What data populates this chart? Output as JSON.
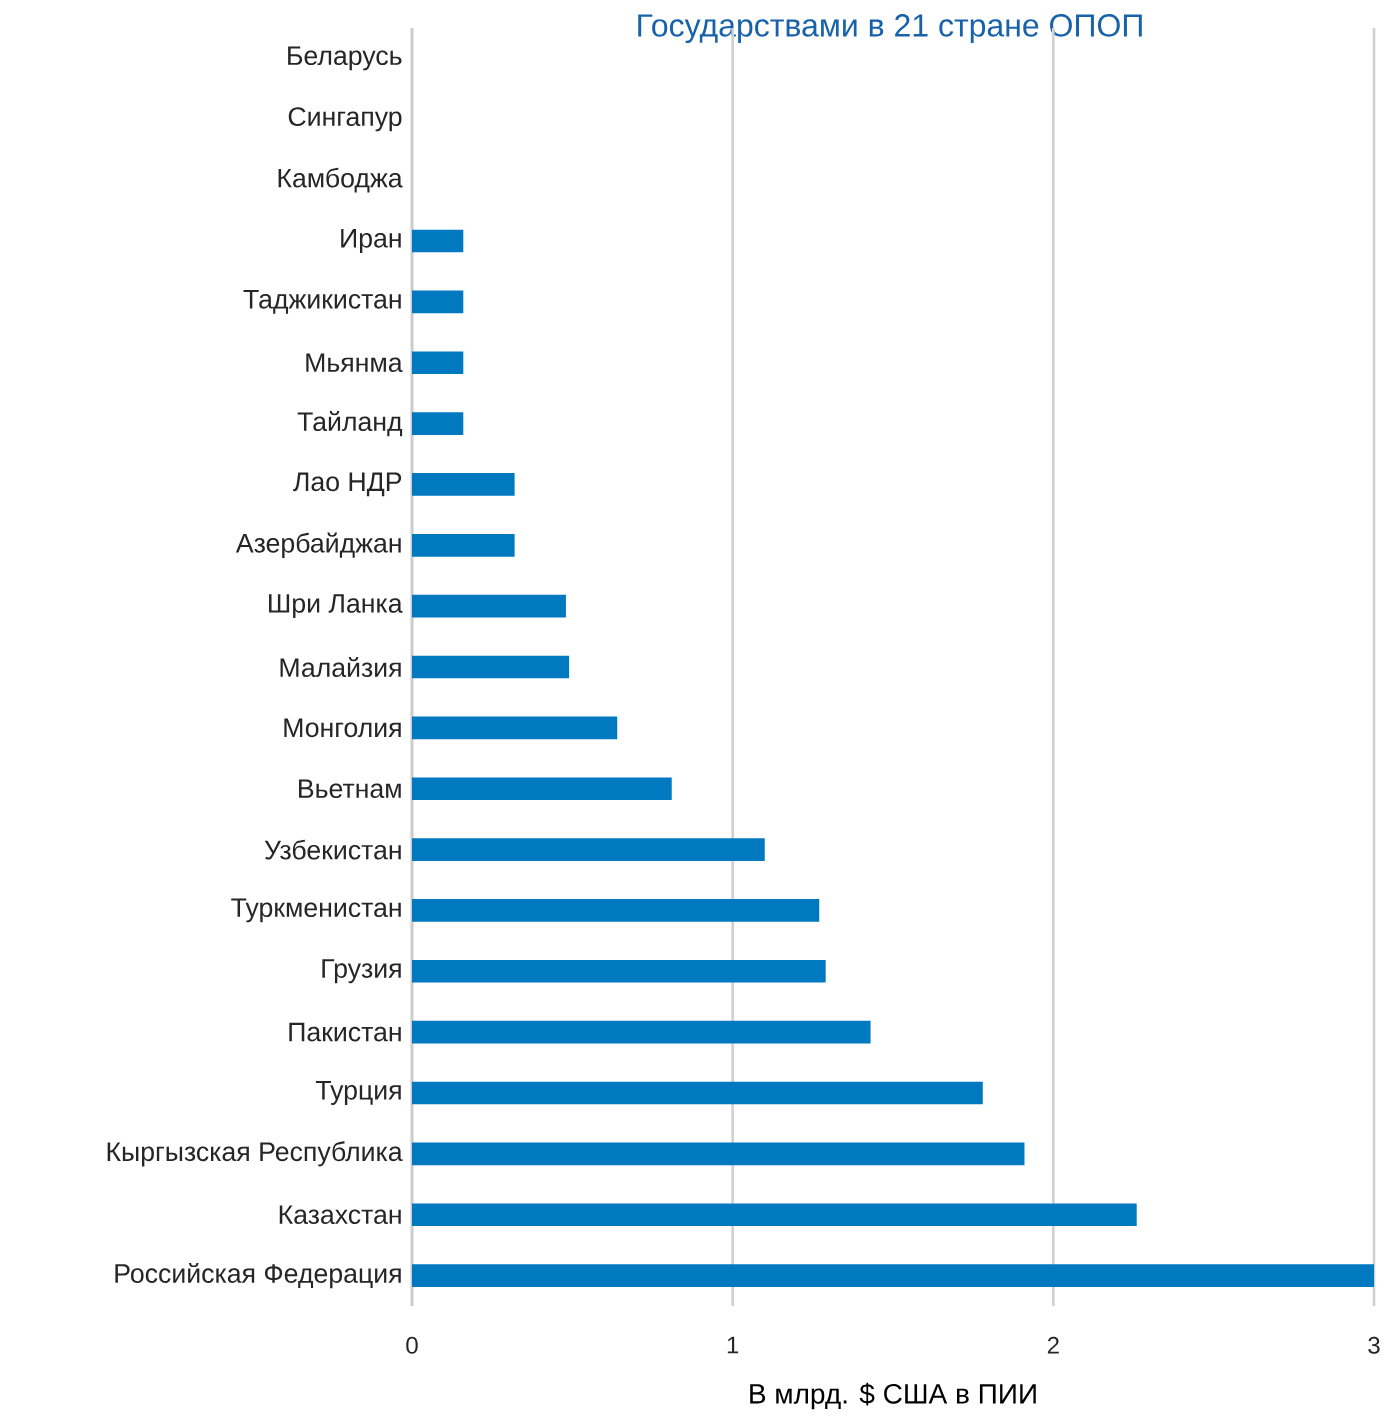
{
  "chart_data": {
    "type": "bar",
    "orientation": "horizontal",
    "title": "Государствами в 21 стране ОПОП",
    "categories": [
      "Беларусь",
      "Сингапур",
      "Камбоджа",
      "Иран",
      "Таджикистан",
      "Мьянма",
      "Тайланд",
      "Лао НДР",
      "Азербайджан",
      "Шри Ланка",
      "Малайзия",
      "Монголия",
      "Вьетнам",
      "Узбекистан",
      "Туркменистан",
      "Грузия",
      "Пакистан",
      "Турция",
      "Кыргызская Республика",
      "Казахстан",
      "Российская Федерация"
    ],
    "values": [
      0,
      0,
      0,
      0.16,
      0.16,
      0.16,
      0.16,
      0.32,
      0.32,
      0.48,
      0.49,
      0.64,
      0.81,
      1.1,
      1.27,
      1.29,
      1.43,
      1.78,
      1.91,
      2.26,
      3.0
    ],
    "color": "#0079c1",
    "xlabel": "В млрд. $ США в ПИИ",
    "xlim": [
      0,
      3
    ],
    "xticks": [
      0,
      1,
      2,
      3
    ],
    "grid": "x"
  }
}
